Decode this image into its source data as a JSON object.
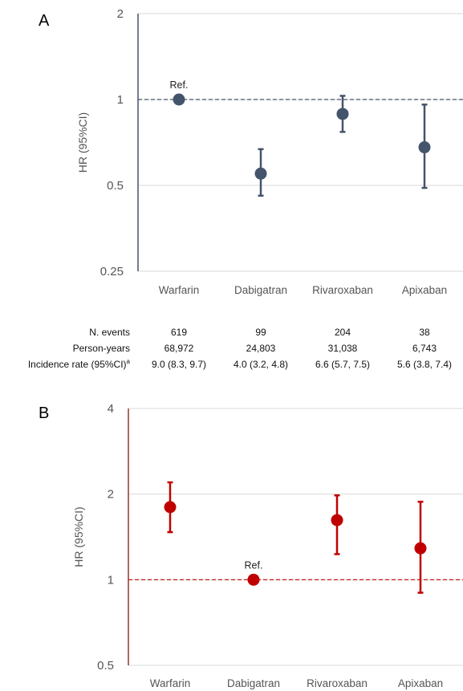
{
  "chart_data": [
    {
      "panel": "A",
      "type": "scatter",
      "scale": "log",
      "ylabel": "HR (95%CI)",
      "ylim": [
        0.25,
        2
      ],
      "yticks": [
        {
          "value": 2,
          "label": "2"
        },
        {
          "value": 1,
          "label": "1"
        },
        {
          "value": 0.5,
          "label": "0.5"
        },
        {
          "value": 0.25,
          "label": "0.25"
        }
      ],
      "categories": [
        "Warfarin",
        "Dabigatran",
        "Rivaroxaban",
        "Apixaban"
      ],
      "hr": [
        1,
        0.55,
        0.89,
        0.68
      ],
      "lower": [
        null,
        0.46,
        0.77,
        0.49
      ],
      "upper": [
        null,
        0.67,
        1.03,
        0.96
      ],
      "reference_line": 1,
      "reference_annotation": {
        "category_index": 0,
        "text": "Ref."
      },
      "color": "#44546a",
      "ref_line_color": "#44546a",
      "axis_color": "#44546a",
      "grid": true
    },
    {
      "panel": "B",
      "type": "scatter",
      "scale": "log",
      "ylabel": "HR (95%CI)",
      "ylim": [
        0.5,
        4
      ],
      "yticks": [
        {
          "value": 4,
          "label": "4"
        },
        {
          "value": 2,
          "label": "2"
        },
        {
          "value": 1,
          "label": "1"
        },
        {
          "value": 0.5,
          "label": "0.5"
        }
      ],
      "categories": [
        "Warfarin",
        "Dabigatran",
        "Rivaroxaban",
        "Apixaban"
      ],
      "hr": [
        1.8,
        1,
        1.62,
        1.29
      ],
      "lower": [
        1.47,
        null,
        1.23,
        0.9
      ],
      "upper": [
        2.2,
        null,
        1.98,
        1.88
      ],
      "reference_line": 1,
      "reference_annotation": {
        "category_index": 1,
        "text": "Ref."
      },
      "color": "#c00000",
      "ref_line_color": "#c00000",
      "axis_color": "#8b3a2a",
      "grid": true
    }
  ],
  "stats_table": {
    "row_labels": [
      "N. events",
      "Person-years",
      "Incidence rate (95%CI)"
    ],
    "superscript": "a",
    "rows": [
      [
        "619",
        "99",
        "204",
        "38"
      ],
      [
        "68,972",
        "24,803",
        "31,038",
        "6,743"
      ],
      [
        "9.0 (8.3, 9.7)",
        "4.0 (3.2, 4.8)",
        "6.6 (5.7, 7.5)",
        "5.6 (3.8, 7.4)"
      ]
    ]
  }
}
